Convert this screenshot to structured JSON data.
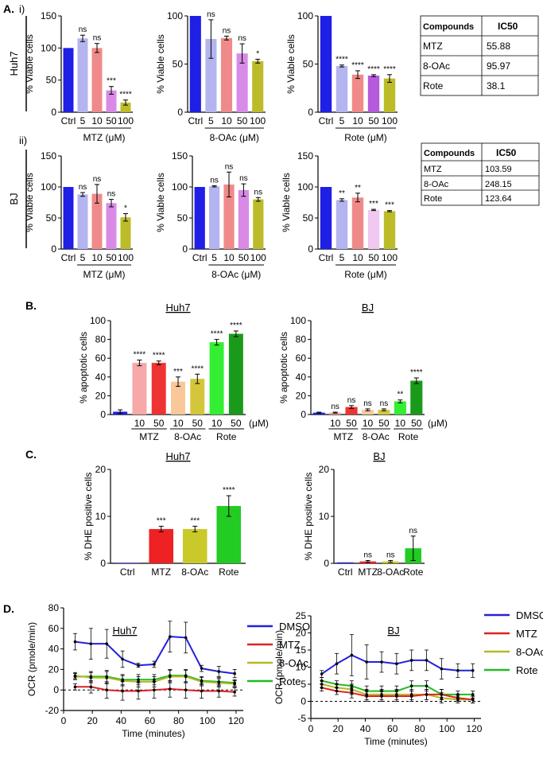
{
  "panels": {
    "A": "A.",
    "Ai": "i)",
    "Aii": "ii)",
    "B": "B.",
    "C": "C.",
    "D": "D."
  },
  "row_labels": {
    "huh7": "Huh7",
    "bj": "BJ"
  },
  "ic50_tables": [
    {
      "header": [
        "Compounds",
        "IC50"
      ],
      "rows": [
        [
          "MTZ",
          "55.88"
        ],
        [
          "8-OAc",
          "95.97"
        ],
        [
          "Rote",
          "38.1"
        ]
      ]
    },
    {
      "header": [
        "Compounds",
        "IC50"
      ],
      "rows": [
        [
          "MTZ",
          "103.59"
        ],
        [
          "8-OAc",
          "248.15"
        ],
        [
          "Rote",
          "123.64"
        ]
      ]
    }
  ],
  "chart_data": [
    {
      "id": "a_huh7_mtz",
      "type": "bar",
      "ylabel": "% Viable cells",
      "ylim": [
        0,
        150
      ],
      "yticks": [
        0,
        50,
        100,
        150
      ],
      "categories": [
        "Ctrl",
        "5",
        "10",
        "50",
        "100"
      ],
      "group_label": "MTZ (μM)",
      "values": [
        100,
        115,
        100,
        34,
        15
      ],
      "errors": [
        0,
        5,
        7,
        6,
        4
      ],
      "significance": [
        "",
        "ns",
        "ns",
        "***",
        "****"
      ],
      "colors": [
        "#1f1fe6",
        "#b4b4f0",
        "#f08a8a",
        "#d98ae6",
        "#bcbc2a"
      ]
    },
    {
      "id": "a_huh7_8oac",
      "type": "bar",
      "ylabel": "% Viable cells",
      "ylim": [
        0,
        100
      ],
      "yticks": [
        0,
        50,
        100
      ],
      "categories": [
        "Ctrl",
        "5",
        "10",
        "50",
        "100"
      ],
      "group_label": "8-OAc (μM)",
      "values": [
        100,
        76,
        77,
        61,
        53
      ],
      "errors": [
        0,
        20,
        2,
        10,
        2
      ],
      "significance": [
        "",
        "ns",
        "ns",
        "ns",
        "*"
      ],
      "colors": [
        "#1f1fe6",
        "#b4b4f0",
        "#f08a8a",
        "#d98ae6",
        "#bcbc2a"
      ]
    },
    {
      "id": "a_huh7_rote",
      "type": "bar",
      "ylabel": "% Viable cells",
      "ylim": [
        0,
        100
      ],
      "yticks": [
        0,
        50,
        100
      ],
      "categories": [
        "Ctrl",
        "5",
        "10",
        "50",
        "100"
      ],
      "group_label": "Rote (μM)",
      "values": [
        100,
        48,
        39,
        38,
        35
      ],
      "errors": [
        0,
        1,
        4,
        1,
        4
      ],
      "significance": [
        "",
        "****",
        "****",
        "****",
        "****"
      ],
      "colors": [
        "#1f1fe6",
        "#b4b4f0",
        "#f08a8a",
        "#b55ad9",
        "#bcbc2a"
      ]
    },
    {
      "id": "a_bj_mtz",
      "type": "bar",
      "ylabel": "% Viable cells",
      "ylim": [
        0,
        150
      ],
      "yticks": [
        0,
        50,
        100,
        150
      ],
      "categories": [
        "Ctrl",
        "5",
        "10",
        "50",
        "100"
      ],
      "group_label": "MTZ (μM)",
      "values": [
        100,
        88,
        89,
        74,
        51
      ],
      "errors": [
        0,
        3,
        15,
        6,
        6
      ],
      "significance": [
        "",
        "ns",
        "ns",
        "ns",
        "*"
      ],
      "colors": [
        "#1f1fe6",
        "#b4b4f0",
        "#f08a8a",
        "#d98ae6",
        "#bcbc2a"
      ]
    },
    {
      "id": "a_bj_8oac",
      "type": "bar",
      "ylabel": "% Viable cells",
      "ylim": [
        0,
        150
      ],
      "yticks": [
        0,
        50,
        100,
        150
      ],
      "categories": [
        "Ctrl",
        "5",
        "10",
        "50",
        "100"
      ],
      "group_label": "8-OAc (μM)",
      "values": [
        100,
        101,
        104,
        95,
        80
      ],
      "errors": [
        0,
        1,
        20,
        10,
        3
      ],
      "significance": [
        "",
        "ns",
        "ns",
        "ns",
        "ns"
      ],
      "colors": [
        "#1f1fe6",
        "#b4b4f0",
        "#f08a8a",
        "#d98ae6",
        "#bcbc2a"
      ]
    },
    {
      "id": "a_bj_rote",
      "type": "bar",
      "ylabel": "% Viable cells",
      "ylim": [
        0,
        150
      ],
      "yticks": [
        0,
        50,
        100,
        150
      ],
      "categories": [
        "Ctrl",
        "5",
        "10",
        "50",
        "100"
      ],
      "group_label": "Rote (μM)",
      "values": [
        100,
        79,
        83,
        63,
        61
      ],
      "errors": [
        0,
        2,
        7,
        1,
        1
      ],
      "significance": [
        "",
        "**",
        "**",
        "***",
        "***"
      ],
      "colors": [
        "#1f1fe6",
        "#b4b4f0",
        "#f08a8a",
        "#f0c8f0",
        "#bcbc2a"
      ]
    },
    {
      "id": "b_huh7",
      "type": "bar",
      "title": "Huh7",
      "ylabel": "% apoptotic cells",
      "ylim": [
        0,
        100
      ],
      "yticks": [
        0,
        20,
        40,
        60,
        80,
        100
      ],
      "categories": [
        "",
        "10",
        "50",
        "10",
        "50",
        "10",
        "50"
      ],
      "unit": "(μM)",
      "groups": [
        "MTZ",
        "8-OAc",
        "Rote"
      ],
      "values": [
        3,
        55,
        55,
        35,
        38,
        77,
        86
      ],
      "errors": [
        2,
        3,
        2,
        5,
        5,
        3,
        3
      ],
      "significance": [
        "",
        "****",
        "****",
        "***",
        "****",
        "****",
        "****"
      ],
      "colors": [
        "#1f1fe6",
        "#f7a8a8",
        "#ee3333",
        "#f9c89a",
        "#d4c63a",
        "#33ee33",
        "#1a9a1a"
      ]
    },
    {
      "id": "b_bj",
      "type": "bar",
      "title": "BJ",
      "ylabel": "% apoptotic cells",
      "ylim": [
        0,
        100
      ],
      "yticks": [
        0,
        20,
        40,
        60,
        80,
        100
      ],
      "categories": [
        "",
        "10",
        "50",
        "10",
        "50",
        "10",
        "50"
      ],
      "unit": "(μM)",
      "groups": [
        "MTZ",
        "8-OAc",
        "Rote"
      ],
      "values": [
        2,
        2,
        8,
        5,
        5,
        14,
        36
      ],
      "errors": [
        0.5,
        0.5,
        1.5,
        1,
        1,
        1.5,
        3
      ],
      "significance": [
        "",
        "ns",
        "ns",
        "ns",
        "ns",
        "**",
        "****"
      ],
      "colors": [
        "#1f1fe6",
        "#f7a8a8",
        "#ee3333",
        "#f9c89a",
        "#d4c63a",
        "#33ee33",
        "#1a9a1a"
      ]
    },
    {
      "id": "c_huh7",
      "type": "bar",
      "title": "Huh7",
      "ylabel": "% DHE positive cells",
      "ylim": [
        0,
        20
      ],
      "yticks": [
        0,
        10,
        20
      ],
      "categories": [
        "Ctrl",
        "MTZ",
        "8-OAc",
        "Rote"
      ],
      "values": [
        0.1,
        7.3,
        7.3,
        12.2
      ],
      "errors": [
        0,
        0.6,
        0.6,
        2.2
      ],
      "significance": [
        "",
        "***",
        "***",
        "****"
      ],
      "colors": [
        "#1f1fe6",
        "#ee2222",
        "#c9c92a",
        "#22cc22"
      ]
    },
    {
      "id": "c_bj",
      "type": "bar",
      "title": "BJ",
      "ylabel": "% DHE positive cells",
      "ylim": [
        0,
        20
      ],
      "yticks": [
        0,
        10,
        20
      ],
      "categories": [
        "Ctrl",
        "MTZ",
        "8-OAc",
        "Rote"
      ],
      "values": [
        0.2,
        0.4,
        0.4,
        3.2
      ],
      "errors": [
        0,
        0.2,
        0.2,
        2.6
      ],
      "significance": [
        "",
        "ns",
        "ns",
        "ns"
      ],
      "colors": [
        "#1f1fe6",
        "#ee2222",
        "#c9c92a",
        "#22cc22"
      ]
    },
    {
      "id": "d_huh7",
      "type": "line",
      "title": "Huh7",
      "xlabel": "Time (minutes)",
      "ylabel": "OCR (pmole/min)",
      "xlim": [
        0,
        125
      ],
      "ylim": [
        -20,
        80
      ],
      "xticks": [
        0,
        20,
        40,
        60,
        80,
        100,
        120
      ],
      "yticks": [
        -20,
        0,
        20,
        40,
        60,
        80
      ],
      "x": [
        8,
        19,
        30,
        41,
        52,
        63,
        74,
        85,
        96,
        108,
        119
      ],
      "series": [
        {
          "name": "DMSO",
          "color": "#2222dd",
          "values": [
            47,
            45,
            45,
            30,
            24,
            25,
            52,
            51,
            21,
            18,
            16
          ],
          "errors": [
            8,
            15,
            14,
            8,
            2,
            3,
            15,
            15,
            3,
            5,
            4
          ]
        },
        {
          "name": "MTZ",
          "color": "#dd2222",
          "values": [
            3,
            3,
            0,
            -1,
            -1,
            0,
            1,
            0,
            -1,
            -1,
            -2
          ],
          "errors": [
            3,
            6,
            8,
            9,
            8,
            8,
            8,
            8,
            7,
            6,
            4
          ]
        },
        {
          "name": "8-OAc",
          "color": "#b7b722",
          "values": [
            14,
            12,
            12,
            9,
            8,
            8,
            13,
            13,
            8,
            7,
            6
          ],
          "errors": [
            3,
            5,
            6,
            5,
            5,
            5,
            6,
            6,
            4,
            4,
            3
          ]
        },
        {
          "name": "Rote",
          "color": "#22bb22",
          "values": [
            13,
            13,
            13,
            10,
            10,
            10,
            14,
            14,
            9,
            8,
            7
          ],
          "errors": [
            3,
            5,
            6,
            5,
            5,
            5,
            6,
            6,
            4,
            4,
            3
          ]
        }
      ]
    },
    {
      "id": "d_bj",
      "type": "line",
      "title": "BJ",
      "xlabel": "Time (minutes)",
      "ylabel": "OCR (pmole/min)",
      "xlim": [
        0,
        125
      ],
      "ylim": [
        -5,
        25
      ],
      "xticks": [
        0,
        20,
        40,
        60,
        80,
        100,
        120
      ],
      "yticks": [
        -5,
        0,
        5,
        10,
        15,
        20,
        25
      ],
      "x": [
        8,
        19,
        30,
        41,
        52,
        63,
        74,
        85,
        96,
        108,
        119
      ],
      "series": [
        {
          "name": "DMSO",
          "color": "#2222dd",
          "values": [
            8,
            11,
            13.5,
            11.5,
            11.5,
            11,
            12,
            12,
            9.5,
            9,
            9
          ],
          "errors": [
            1,
            3,
            6,
            5,
            3,
            3,
            3,
            3,
            3,
            2,
            2
          ]
        },
        {
          "name": "MTZ",
          "color": "#dd2222",
          "values": [
            4,
            3,
            2.5,
            1.5,
            1.5,
            1.5,
            1.5,
            2,
            2,
            1,
            0.5
          ],
          "errors": [
            1,
            1,
            1.5,
            1.5,
            1.5,
            1.5,
            1.5,
            1.5,
            1.5,
            1,
            1
          ]
        },
        {
          "name": "8-OAc",
          "color": "#b7b722",
          "values": [
            5,
            4,
            3.5,
            2,
            2,
            2,
            2,
            2,
            1,
            0.5,
            0.5
          ],
          "errors": [
            1,
            1,
            1.5,
            1.5,
            1.5,
            1.5,
            1.5,
            1.5,
            1.5,
            1,
            1
          ]
        },
        {
          "name": "Rote",
          "color": "#22bb22",
          "values": [
            6,
            5,
            4.5,
            3,
            3,
            3,
            4.5,
            4.5,
            2,
            2,
            2
          ],
          "errors": [
            1,
            1,
            1.5,
            1.5,
            1.5,
            1.5,
            1.5,
            1.5,
            1.5,
            1,
            1
          ]
        }
      ]
    }
  ]
}
